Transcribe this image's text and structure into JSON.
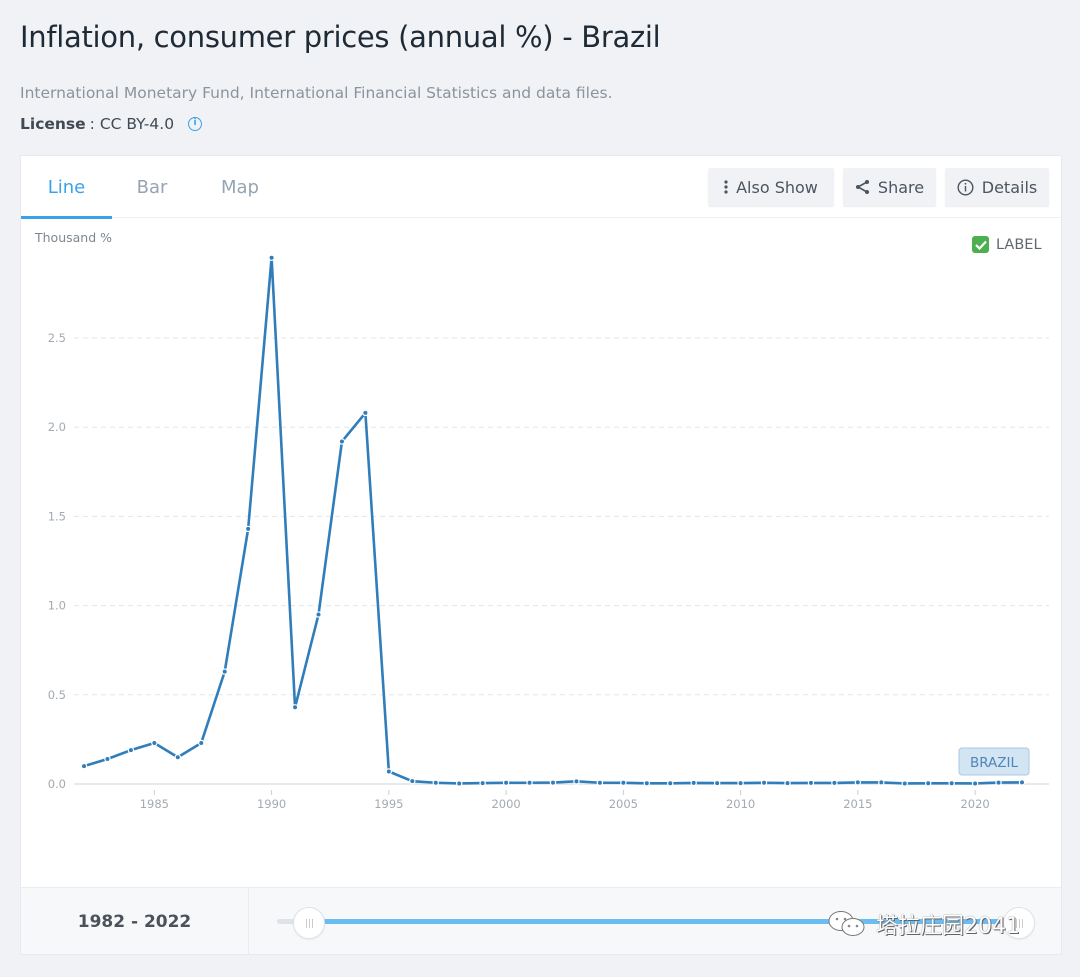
{
  "page": {
    "title": "Inflation, consumer prices (annual %) - Brazil",
    "source": "International Monetary Fund, International Financial Statistics and data files.",
    "license_label": "License",
    "license_value": ": CC BY-4.0",
    "license_info_icon": "info-icon"
  },
  "tabs": [
    {
      "label": "Line",
      "active": true
    },
    {
      "label": "Bar",
      "active": false
    },
    {
      "label": "Map",
      "active": false
    }
  ],
  "toolbar": {
    "also_show": {
      "label": "Also Show",
      "icon": "vertical-dots-icon"
    },
    "share": {
      "label": "Share",
      "icon": "share-icon"
    },
    "details": {
      "label": "Details",
      "icon": "info-circle-icon"
    }
  },
  "label_toggle": {
    "label": "LABEL",
    "checked": true,
    "color": "#4caf50"
  },
  "footer": {
    "range_label": "1982 - 2022",
    "slider_start_year": 1982,
    "slider_end_year": 2022
  },
  "watermark": {
    "text": "塔拉庄园2041",
    "icon": "wechat-icon"
  },
  "colors": {
    "line": "#2f7dba",
    "accent": "#3aa3e8",
    "slider": "#6cbcf0"
  },
  "chart_data": {
    "type": "line",
    "title": "Inflation, consumer prices (annual %) - Brazil",
    "ylabel": "Thousand %",
    "xlabel": "",
    "ylim": [
      0,
      3.0
    ],
    "xlim": [
      1982,
      2022
    ],
    "yticks": [
      "0.0",
      "0.5",
      "1.0",
      "1.5",
      "2.0",
      "2.5"
    ],
    "ytick_values": [
      0,
      0.5,
      1.0,
      1.5,
      2.0,
      2.5
    ],
    "xticks": [
      "1985",
      "1990",
      "1995",
      "2000",
      "2005",
      "2010",
      "2015",
      "2020"
    ],
    "xtick_values": [
      1985,
      1990,
      1995,
      2000,
      2005,
      2010,
      2015,
      2020
    ],
    "grid": true,
    "series": [
      {
        "name": "BRAZIL",
        "x": [
          1982,
          1983,
          1984,
          1985,
          1986,
          1987,
          1988,
          1989,
          1990,
          1991,
          1992,
          1993,
          1994,
          1995,
          1996,
          1997,
          1998,
          1999,
          2000,
          2001,
          2002,
          2003,
          2004,
          2005,
          2006,
          2007,
          2008,
          2009,
          2010,
          2011,
          2012,
          2013,
          2014,
          2015,
          2016,
          2017,
          2018,
          2019,
          2020,
          2021,
          2022
        ],
        "values": [
          0.1,
          0.14,
          0.19,
          0.23,
          0.15,
          0.23,
          0.63,
          1.43,
          2.95,
          0.43,
          0.95,
          1.92,
          2.08,
          0.07,
          0.016,
          0.007,
          0.003,
          0.005,
          0.007,
          0.007,
          0.008,
          0.015,
          0.007,
          0.007,
          0.004,
          0.004,
          0.006,
          0.005,
          0.005,
          0.007,
          0.005,
          0.006,
          0.006,
          0.009,
          0.009,
          0.003,
          0.004,
          0.004,
          0.003,
          0.008,
          0.009
        ]
      }
    ]
  }
}
